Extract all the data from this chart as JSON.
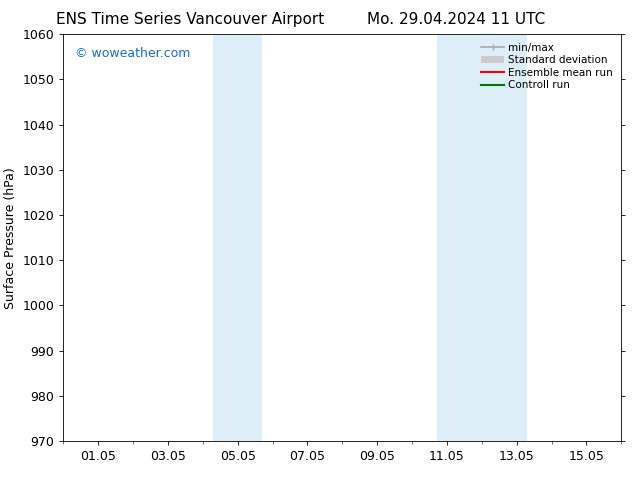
{
  "title_left": "ENS Time Series Vancouver Airport",
  "title_right": "Mo. 29.04.2024 11 UTC",
  "ylabel": "Surface Pressure (hPa)",
  "ylim": [
    970,
    1060
  ],
  "yticks": [
    970,
    980,
    990,
    1000,
    1010,
    1020,
    1030,
    1040,
    1050,
    1060
  ],
  "xtick_labels": [
    "01.05",
    "03.05",
    "05.05",
    "07.05",
    "09.05",
    "11.05",
    "13.05",
    "15.05"
  ],
  "xtick_positions": [
    1,
    3,
    5,
    7,
    9,
    11,
    13,
    15
  ],
  "xmin": 0.0,
  "xmax": 16.0,
  "shaded_bands": [
    {
      "xmin": 4.3,
      "xmax": 5.7,
      "color": "#ddeef8"
    },
    {
      "xmin": 10.7,
      "xmax": 13.3,
      "color": "#ddeef8"
    }
  ],
  "watermark_text": "© woweather.com",
  "watermark_color": "#1a6fc4",
  "legend_items": [
    {
      "label": "min/max",
      "color": "#aaaaaa",
      "lw": 1.2
    },
    {
      "label": "Standard deviation",
      "color": "#cccccc",
      "lw": 6
    },
    {
      "label": "Ensemble mean run",
      "color": "#ff0000",
      "lw": 1.5
    },
    {
      "label": "Controll run",
      "color": "#007700",
      "lw": 1.5
    }
  ],
  "bg_color": "#ffffff",
  "title_fontsize": 11,
  "tick_fontsize": 9
}
